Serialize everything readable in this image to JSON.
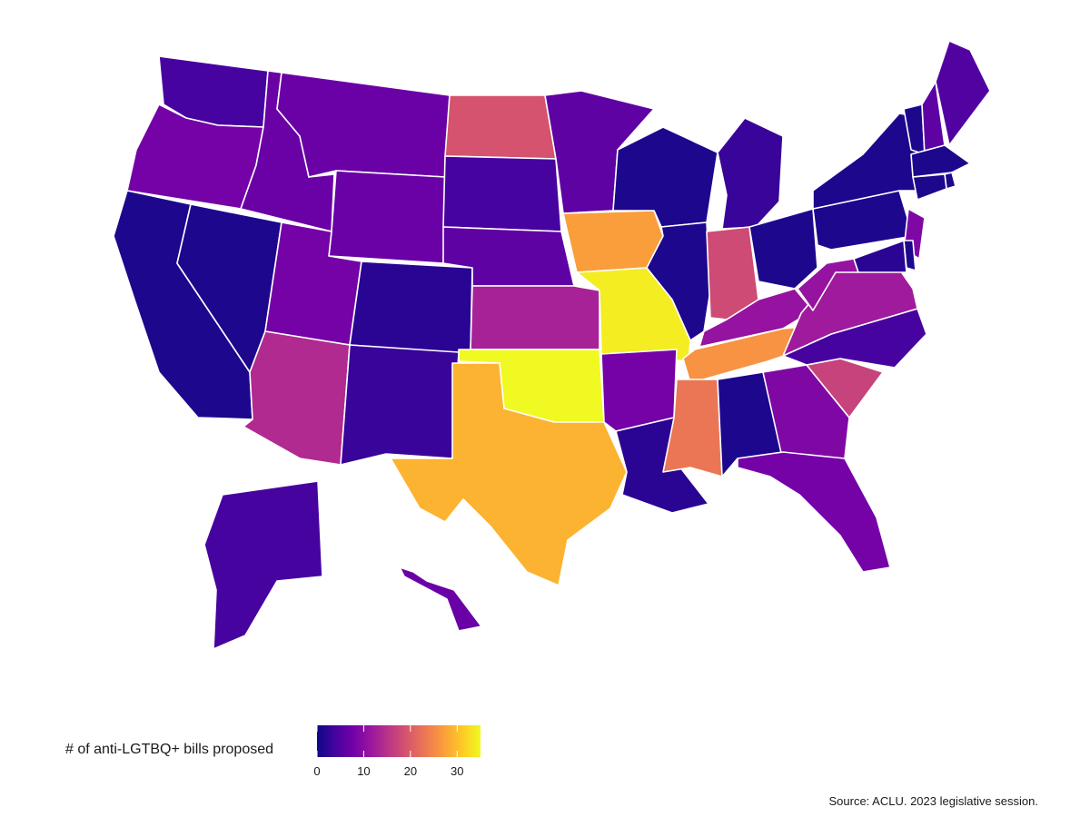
{
  "legend": {
    "title": "# of anti-LGTBQ+ bills proposed",
    "ticks": [
      0,
      10,
      20,
      30
    ],
    "range": [
      0,
      35
    ],
    "palette": [
      "#0d0887",
      "#46039f",
      "#7201a8",
      "#9c179e",
      "#bd3786",
      "#d8576b",
      "#ed7953",
      "#fb9f3a",
      "#fdca26",
      "#f0f921"
    ]
  },
  "caption": "Source: ACLU. 2023 legislative session.",
  "state_values": {
    "WA": 4,
    "OR": 8,
    "CA": 1,
    "NV": 1,
    "ID": 7,
    "MT": 7,
    "WY": 7,
    "UT": 8,
    "CO": 2,
    "AZ": 14,
    "NM": 3,
    "ND": 19,
    "SD": 4,
    "NE": 6,
    "KS": 13,
    "OK": 35,
    "TX": 29,
    "MN": 6,
    "IA": 27,
    "MO": 34,
    "AR": 8,
    "LA": 2,
    "WI": 1,
    "IL": 1,
    "MI": 3,
    "IN": 18,
    "OH": 1,
    "KY": 11,
    "TN": 26,
    "MS": 23,
    "AL": 1,
    "GA": 9,
    "FL": 8,
    "SC": 17,
    "NC": 4,
    "VA": 12,
    "WV": 11,
    "PA": 1,
    "NY": 1,
    "VT": 1,
    "NH": 6,
    "ME": 5,
    "MA": 1,
    "RI": 1,
    "CT": 1,
    "NJ": 9,
    "DE": 1,
    "MD": 2,
    "AK": 4,
    "HI": 7
  }
}
